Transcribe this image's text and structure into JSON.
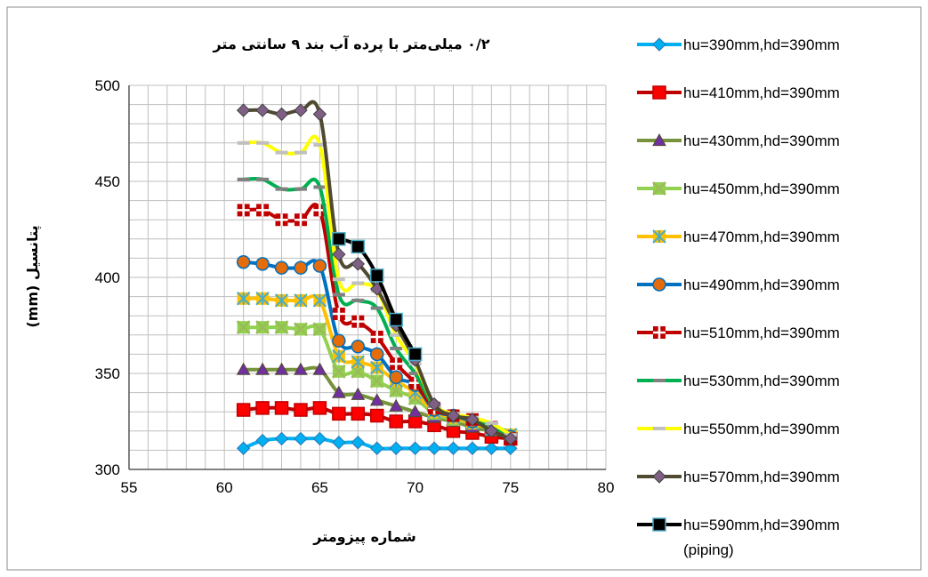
{
  "chart_data": {
    "type": "line",
    "title": "۰/۲ میلی‌متر با پرده آب بند ۹ سانتی متر",
    "xlabel": "شماره پیزومتر",
    "ylabel": "پتانسیل (mm)",
    "xlim": [
      55,
      80
    ],
    "ylim": [
      300,
      500
    ],
    "xticks": [
      "55",
      "60",
      "65",
      "70",
      "75",
      "80"
    ],
    "yticks": [
      "300",
      "350",
      "400",
      "450",
      "500"
    ],
    "grid": true,
    "legend_position": "right",
    "series": [
      {
        "name": "hu=390mm,hd=390mm",
        "color": "#00B0F0",
        "marker_color": "#2E75B6",
        "marker": "diamond",
        "x": [
          61,
          62,
          63,
          64,
          65,
          66,
          67,
          68,
          69,
          70,
          71,
          72,
          73,
          74,
          75
        ],
        "y": [
          311,
          315,
          316,
          316,
          316,
          314,
          314,
          311,
          311,
          311,
          311,
          311,
          311,
          311,
          311
        ]
      },
      {
        "name": "hu=410mm,hd=390mm",
        "color": "#C00000",
        "marker_color": "#FF0000",
        "marker": "square",
        "x": [
          61,
          62,
          63,
          64,
          65,
          66,
          67,
          68,
          69,
          70,
          71,
          72,
          73,
          74,
          75
        ],
        "y": [
          331,
          332,
          332,
          331,
          332,
          329,
          329,
          328,
          325,
          325,
          323,
          320,
          319,
          317,
          316
        ]
      },
      {
        "name": "hu=430mm,hd=390mm",
        "color": "#77933C",
        "marker_color": "#7030A0",
        "marker": "triangle",
        "x": [
          61,
          62,
          63,
          64,
          65,
          66,
          67,
          68,
          69,
          70,
          71,
          72,
          73,
          74,
          75
        ],
        "y": [
          352,
          352,
          352,
          352,
          352,
          340,
          339,
          336,
          333,
          330,
          327,
          325,
          322,
          320,
          318
        ]
      },
      {
        "name": "hu=450mm,hd=390mm",
        "color": "#92D050",
        "marker_color": "#9BBB59",
        "marker": "x",
        "x": [
          61,
          62,
          63,
          64,
          65,
          66,
          67,
          68,
          69,
          70,
          71,
          72,
          73,
          74,
          75
        ],
        "y": [
          374,
          374,
          374,
          373,
          373,
          351,
          351,
          346,
          341,
          337,
          329,
          326,
          324,
          321,
          318
        ]
      },
      {
        "name": "hu=470mm,hd=390mm",
        "color": "#FFC000",
        "marker_color": "#4BACC6",
        "marker": "star",
        "x": [
          61,
          62,
          63,
          64,
          65,
          66,
          67,
          68,
          69,
          70,
          71,
          72,
          73,
          74,
          75
        ],
        "y": [
          389,
          389,
          388,
          388,
          388,
          359,
          356,
          353,
          346,
          340,
          330,
          327,
          324,
          321,
          318
        ]
      },
      {
        "name": "hu=490mm,hd=390mm",
        "color": "#0070C0",
        "marker_color": "#E46C0A",
        "marker": "circle",
        "x": [
          61,
          62,
          63,
          64,
          65,
          66,
          67,
          68,
          69,
          70,
          71,
          72,
          73,
          74,
          75
        ],
        "y": [
          408,
          407,
          405,
          405,
          406,
          367,
          364,
          360,
          348,
          344,
          331,
          328,
          325,
          321,
          317
        ]
      },
      {
        "name": "hu=510mm,hd=390mm",
        "color": "#C00000",
        "marker_color": "#C00000",
        "marker": "plus",
        "x": [
          61,
          62,
          63,
          64,
          65,
          66,
          67,
          68,
          69,
          70,
          71,
          72,
          73,
          74,
          75
        ],
        "y": [
          435,
          435,
          430,
          430,
          435,
          381,
          377,
          369,
          355,
          345,
          332,
          328,
          326,
          322,
          316
        ]
      },
      {
        "name": "hu=530mm,hd=390mm",
        "color": "#00B050",
        "marker_color": "#808080",
        "marker": "dash",
        "x": [
          61,
          62,
          63,
          64,
          65,
          66,
          67,
          68,
          69,
          70,
          71,
          72,
          73,
          74,
          75
        ],
        "y": [
          451,
          451,
          446,
          446,
          447,
          391,
          388,
          384,
          363,
          350,
          333,
          329,
          326,
          322,
          318
        ]
      },
      {
        "name": "hu=550mm,hd=390mm",
        "color": "#FFFF00",
        "marker_color": "#C0C0C0",
        "marker": "dash",
        "x": [
          61,
          62,
          63,
          64,
          65,
          66,
          67,
          68,
          69,
          70,
          71,
          72,
          73,
          74,
          75
        ],
        "y": [
          470,
          470,
          465,
          465,
          469,
          399,
          397,
          393,
          370,
          355,
          334,
          329,
          327,
          324,
          318
        ]
      },
      {
        "name": "hu=570mm,hd=390mm",
        "color": "#4F4A30",
        "marker_color": "#7F6084",
        "marker": "diamond",
        "x": [
          61,
          62,
          63,
          64,
          65,
          66,
          67,
          68,
          69,
          70,
          71,
          72,
          73,
          74,
          75
        ],
        "y": [
          487,
          487,
          485,
          487,
          485,
          412,
          407,
          394,
          375,
          357,
          334,
          328,
          326,
          320,
          316
        ]
      },
      {
        "name": "hu=590mm,hd=390mm",
        "name_line2": "(piping)",
        "color": "#000000",
        "marker_color": "#000000",
        "marker": "square",
        "x": [
          66,
          67,
          68,
          69,
          70
        ],
        "y": [
          420,
          416,
          401,
          378,
          360
        ]
      }
    ]
  }
}
